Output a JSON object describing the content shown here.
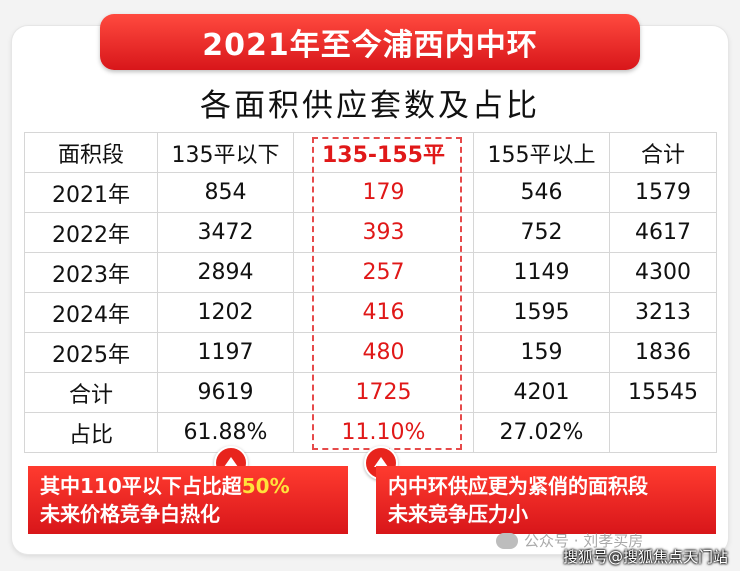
{
  "banner_title": "2021年至今浦西内中环",
  "subtitle": "各面积供应套数及占比",
  "table": {
    "headers": [
      "面积段",
      "135平以下",
      "135-155平",
      "155平以上",
      "合计"
    ],
    "rows": [
      [
        "2021年",
        "854",
        "179",
        "546",
        "1579"
      ],
      [
        "2022年",
        "3472",
        "393",
        "752",
        "4617"
      ],
      [
        "2023年",
        "2894",
        "257",
        "1149",
        "4300"
      ],
      [
        "2024年",
        "1202",
        "416",
        "1595",
        "3213"
      ],
      [
        "2025年",
        "1197",
        "480",
        "159",
        "1836"
      ],
      [
        "合计",
        "9619",
        "1725",
        "4201",
        "15545"
      ],
      [
        "占比",
        "61.88%",
        "11.10%",
        "27.02%",
        ""
      ]
    ]
  },
  "callouts": [
    {
      "line1_prefix": "其中110平以下占比超",
      "line1_highlight": "50%",
      "line2": "未来价格竞争白热化"
    },
    {
      "line1": "内中环供应更为紧俏的面积段",
      "line2": "未来竞争压力小"
    }
  ],
  "footer": {
    "source": "公众号 · 刘孝买房",
    "watermark": "搜狐号@搜狐焦点天门站"
  },
  "colors": {
    "accent": "#e01818",
    "highlight": "#ffe23b"
  }
}
